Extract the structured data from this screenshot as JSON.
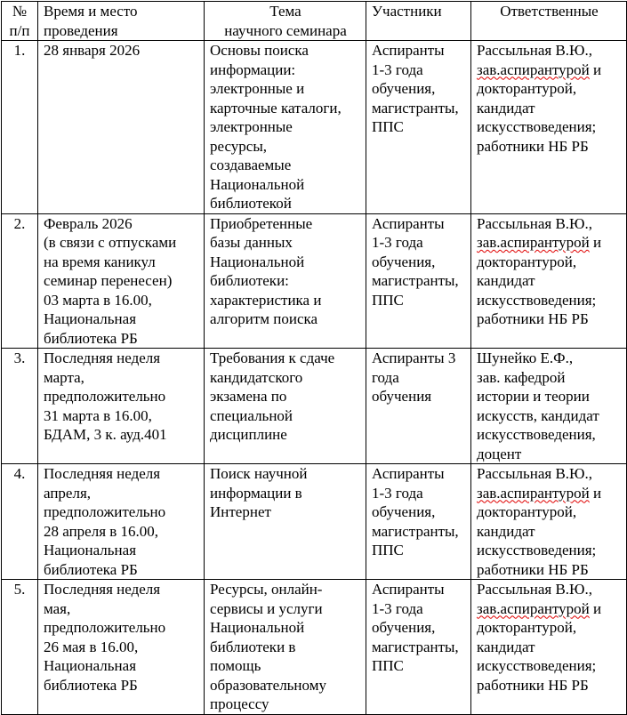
{
  "spellcheck_underlined": "зав.аспирантурой",
  "header": [
    [
      "№",
      "п/п"
    ],
    [
      "Время и место",
      "проведения"
    ],
    [
      "Тема",
      "научного семинара"
    ],
    [
      "Участники"
    ],
    [
      "Ответственные"
    ]
  ],
  "rows": [
    {
      "cells": [
        [
          "1."
        ],
        [
          "28 января 2026"
        ],
        [
          "Основы поиска",
          "информации:",
          "электронные и",
          "карточные каталоги,",
          "электронные",
          "ресурсы,",
          "создаваемые",
          "Национальной",
          "библиотекой"
        ],
        [
          "Аспиранты",
          "1-3 года",
          "обучения,",
          "магистранты,",
          "ППС"
        ],
        [
          "Рассыльная В.Ю.,",
          "зав.аспирантурой и",
          "докторантурой,",
          "кандидат",
          "искусствоведения;",
          "работники НБ РБ"
        ]
      ]
    },
    {
      "cells": [
        [
          "2."
        ],
        [
          "Февраль 2026",
          "(в связи с отпусками",
          "на время каникул",
          "семинар перенесен)",
          "03 марта в 16.00,",
          "Национальная",
          "библиотека РБ"
        ],
        [
          "Приобретенные",
          "базы данных",
          "Национальной",
          "библиотеки:",
          "характеристика и",
          "алгоритм поиска"
        ],
        [
          "Аспиранты",
          "1-3 года",
          "обучения,",
          "магистранты,",
          "ППС"
        ],
        [
          "Рассыльная В.Ю.,",
          "зав.аспирантурой и",
          "докторантурой,",
          "кандидат",
          "искусствоведения;",
          "работники НБ РБ"
        ]
      ]
    },
    {
      "cells": [
        [
          "3."
        ],
        [
          "Последняя неделя",
          "марта,",
          "предположительно",
          "31 марта в 16.00,",
          "БДАМ, 3 к. ауд.401"
        ],
        [
          "Требования к сдаче",
          "кандидатского",
          "экзамена по",
          "специальной",
          "дисциплине"
        ],
        [
          "Аспиранты 3",
          "года",
          "обучения"
        ],
        [
          "Шунейко Е.Ф.,",
          "зав. кафедрой",
          "истории и теории",
          "искусств, кандидат",
          "искусствоведения,",
          "доцент"
        ]
      ]
    },
    {
      "cells": [
        [
          "4."
        ],
        [
          "Последняя неделя",
          "апреля,",
          "предположительно",
          "28 апреля в 16.00,",
          "Национальная",
          "библиотека РБ"
        ],
        [
          "Поиск научной",
          "информации в",
          "Интернет"
        ],
        [
          "Аспиранты",
          "1-3 года",
          "обучения,",
          "магистранты,",
          "ППС"
        ],
        [
          "Рассыльная В.Ю.,",
          "зав.аспирантурой и",
          "докторантурой,",
          "кандидат",
          "искусствоведения;",
          "работники НБ РБ"
        ]
      ]
    },
    {
      "cells": [
        [
          "5."
        ],
        [
          "Последняя неделя",
          "мая,",
          "предположительно",
          "26 мая в 16.00,",
          "Национальная",
          "библиотека РБ"
        ],
        [
          "Ресурсы, онлайн-",
          "сервисы и услуги",
          "Национальной",
          "библиотеки в",
          "помощь",
          "образовательному",
          "процессу"
        ],
        [
          "Аспиранты",
          "1-3 года",
          "обучения,",
          "магистранты,",
          "ППС"
        ],
        [
          "Рассыльная В.Ю.,",
          "зав.аспирантурой и",
          "докторантурой,",
          "кандидат",
          "искусствоведения;",
          "работники НБ РБ"
        ]
      ]
    }
  ]
}
